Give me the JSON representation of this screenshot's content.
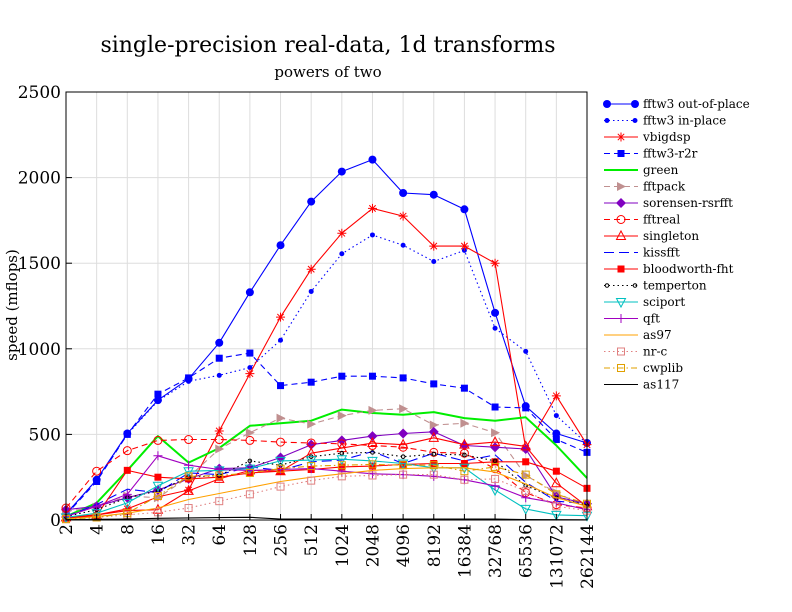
{
  "chart_data": {
    "type": "line",
    "title": "single-precision real-data, 1d transforms",
    "subtitle": "powers of two",
    "xlabel": "",
    "ylabel": "speed (mflops)",
    "ylim": [
      0,
      2500
    ],
    "yticks": [
      "0",
      "500",
      "1000",
      "1500",
      "2000",
      "2500"
    ],
    "categories": [
      "2",
      "4",
      "8",
      "16",
      "32",
      "64",
      "128",
      "256",
      "512",
      "1024",
      "2048",
      "4096",
      "8192",
      "16384",
      "32768",
      "65536",
      "131072",
      "262144"
    ],
    "grid": true,
    "legend_position": "right",
    "series": [
      {
        "name": "fftw3 out-of-place",
        "color": "#0000ff",
        "dash": "solid",
        "marker": "circle",
        "values": [
          35,
          235,
          505,
          700,
          825,
          1035,
          1330,
          1605,
          1860,
          2035,
          2105,
          1910,
          1900,
          1815,
          1210,
          665,
          505,
          450
        ]
      },
      {
        "name": "fftw3 in-place",
        "color": "#0000ff",
        "dash": "dot",
        "marker": "dot",
        "values": [
          35,
          235,
          500,
          695,
          810,
          845,
          890,
          1050,
          1335,
          1555,
          1665,
          1605,
          1510,
          1575,
          1120,
          985,
          610,
          445
        ]
      },
      {
        "name": "vbigdsp",
        "color": "#ff0000",
        "dash": "solid",
        "marker": "star",
        "values": [
          15,
          30,
          65,
          135,
          175,
          520,
          855,
          1185,
          1465,
          1675,
          1820,
          1775,
          1600,
          1600,
          1500,
          420,
          725,
          440
        ]
      },
      {
        "name": "fftw3-r2r",
        "color": "#0000ff",
        "dash": "dash",
        "marker": "square",
        "values": [
          30,
          225,
          500,
          735,
          830,
          945,
          975,
          785,
          805,
          840,
          840,
          830,
          795,
          770,
          660,
          655,
          470,
          395
        ]
      },
      {
        "name": "green",
        "color": "#00ee00",
        "dash": "solid",
        "marker": "none",
        "values": [
          20,
          100,
          290,
          490,
          335,
          420,
          550,
          565,
          580,
          645,
          625,
          615,
          630,
          595,
          580,
          600,
          435,
          245
        ]
      },
      {
        "name": "fftpack",
        "color": "#c09090",
        "dash": "dash",
        "marker": "triangle-right",
        "values": [
          50,
          75,
          140,
          130,
          250,
          415,
          510,
          595,
          560,
          610,
          640,
          650,
          555,
          565,
          510,
          260,
          160,
          75
        ]
      },
      {
        "name": "sorensen-rsrfft",
        "color": "#8000c0",
        "dash": "solid",
        "marker": "diamond",
        "values": [
          60,
          80,
          130,
          175,
          240,
          300,
          305,
          365,
          440,
          465,
          490,
          505,
          515,
          435,
          425,
          415,
          135,
          95
        ]
      },
      {
        "name": "fftreal",
        "color": "#ff0000",
        "dash": "dash",
        "marker": "circle-open",
        "values": [
          70,
          285,
          405,
          465,
          470,
          470,
          465,
          455,
          450,
          445,
          435,
          425,
          395,
          390,
          300,
          160,
          90,
          70
        ]
      },
      {
        "name": "singleton",
        "color": "#ff0000",
        "dash": "solid",
        "marker": "triangle-open",
        "values": [
          15,
          30,
          55,
          60,
          170,
          240,
          290,
          285,
          390,
          420,
          450,
          440,
          480,
          440,
          455,
          430,
          215,
          80
        ]
      },
      {
        "name": "kissfft",
        "color": "#0000ff",
        "dash": "longdash",
        "marker": "none",
        "values": [
          20,
          90,
          180,
          160,
          275,
          265,
          310,
          290,
          340,
          350,
          400,
          330,
          390,
          345,
          380,
          220,
          110,
          95
        ]
      },
      {
        "name": "bloodworth-fht",
        "color": "#ff0000",
        "dash": "solid",
        "marker": "square-filled",
        "values": [
          10,
          25,
          290,
          250,
          240,
          250,
          275,
          285,
          295,
          310,
          315,
          325,
          330,
          330,
          340,
          340,
          285,
          185
        ]
      },
      {
        "name": "temperton",
        "color": "#000000",
        "dash": "dot",
        "marker": "circle-small",
        "values": [
          20,
          60,
          130,
          170,
          250,
          260,
          345,
          320,
          370,
          390,
          395,
          370,
          385,
          380,
          345,
          200,
          130,
          85
        ]
      },
      {
        "name": "sciport",
        "color": "#00c0c0",
        "dash": "solid",
        "marker": "triangle-down-open",
        "values": [
          15,
          40,
          100,
          200,
          285,
          290,
          300,
          345,
          350,
          355,
          345,
          330,
          305,
          305,
          175,
          65,
          30,
          25
        ]
      },
      {
        "name": "qft",
        "color": "#a000c0",
        "dash": "solid",
        "marker": "plus",
        "values": [
          20,
          80,
          150,
          375,
          320,
          295,
          290,
          295,
          300,
          285,
          270,
          265,
          255,
          235,
          200,
          130,
          100,
          60
        ]
      },
      {
        "name": "as97",
        "color": "#ffa000",
        "dash": "solid",
        "marker": "none",
        "values": [
          5,
          20,
          40,
          70,
          120,
          155,
          190,
          225,
          250,
          270,
          290,
          300,
          305,
          305,
          280,
          210,
          130,
          80
        ]
      },
      {
        "name": "nr-c",
        "color": "#e08080",
        "dash": "dot",
        "marker": "square-open",
        "values": [
          5,
          15,
          30,
          45,
          70,
          110,
          150,
          195,
          230,
          255,
          260,
          265,
          265,
          235,
          240,
          170,
          80,
          55
        ]
      },
      {
        "name": "cwplib",
        "color": "#e0a000",
        "dash": "dashdot",
        "marker": "square-open",
        "values": [
          5,
          15,
          40,
          140,
          255,
          260,
          275,
          300,
          315,
          320,
          325,
          320,
          320,
          285,
          310,
          265,
          150,
          95
        ]
      },
      {
        "name": "as117",
        "color": "#000000",
        "dash": "solid",
        "marker": "none",
        "values": [
          2,
          4,
          6,
          10,
          12,
          14,
          16,
          5,
          5,
          5,
          5,
          5,
          5,
          5,
          5,
          3,
          2,
          1
        ]
      }
    ]
  }
}
